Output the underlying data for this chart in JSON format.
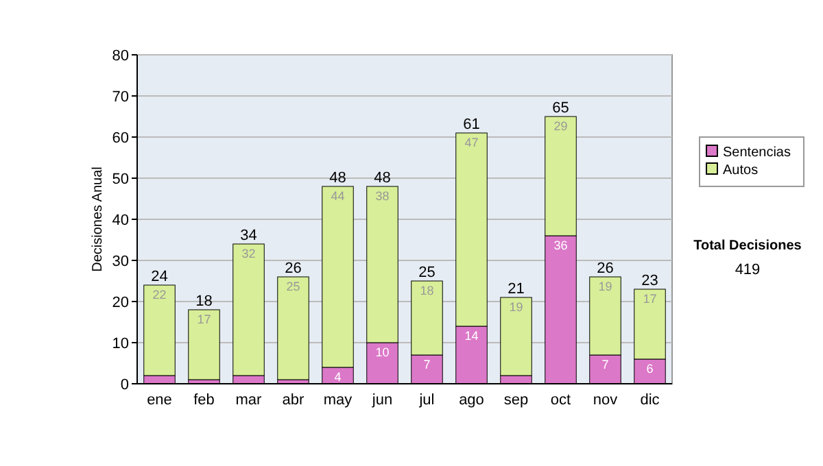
{
  "chart_data": {
    "type": "bar",
    "stacked": true,
    "ylabel": "Decisiones Anual",
    "categories": [
      "ene",
      "feb",
      "mar",
      "abr",
      "may",
      "jun",
      "jul",
      "ago",
      "sep",
      "oct",
      "nov",
      "dic"
    ],
    "series": [
      {
        "name": "Sentencias",
        "color": "#dc78c8",
        "values": [
          2,
          1,
          2,
          1,
          4,
          10,
          7,
          14,
          2,
          36,
          7,
          6
        ],
        "value_labels": [
          null,
          null,
          null,
          null,
          "4",
          "10",
          "7",
          "14",
          null,
          "36",
          "7",
          "6"
        ]
      },
      {
        "name": "Autos",
        "color": "#d8ee98",
        "values": [
          22,
          17,
          32,
          25,
          44,
          38,
          18,
          47,
          19,
          29,
          19,
          17
        ],
        "value_labels": [
          "22",
          "17",
          "32",
          "25",
          "44",
          "38",
          "18",
          "47",
          "19",
          "29",
          "19",
          "17"
        ]
      }
    ],
    "totals": [
      "24",
      "18",
      "34",
      "26",
      "48",
      "48",
      "25",
      "61",
      "21",
      "65",
      "26",
      "23"
    ],
    "ylim": [
      0,
      80
    ],
    "yticks": [
      0,
      10,
      20,
      30,
      40,
      50,
      60,
      70,
      80
    ],
    "grid": "y",
    "legend": "right",
    "annotations": [
      "Total Decisiones",
      "419"
    ]
  }
}
